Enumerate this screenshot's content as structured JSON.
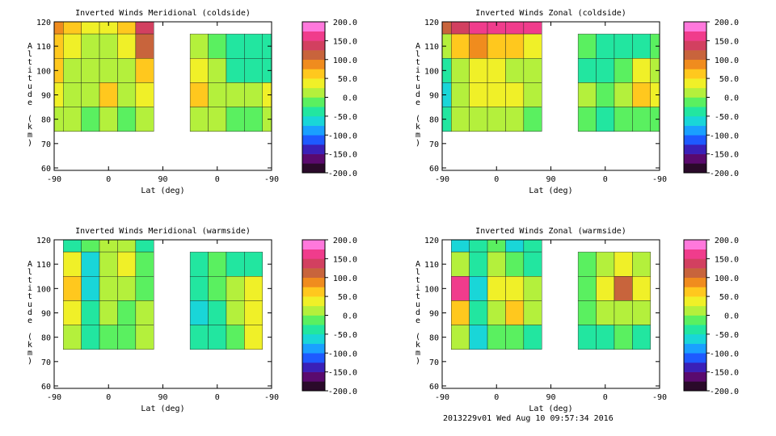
{
  "footer": "2013229v01 Wed Aug 10 09:57:34 2016",
  "colorbar": {
    "ticks": [
      "200.0",
      "150.0",
      "100.0",
      "50.0",
      "0.0",
      "-50.0",
      "-100.0",
      "-150.0",
      "-200.0"
    ],
    "range": [
      -200,
      200
    ],
    "colors": [
      "#2a0a2a",
      "#5a0a6e",
      "#3a20b8",
      "#1e5aff",
      "#1aa0ff",
      "#19d6d8",
      "#22e6a0",
      "#5af060",
      "#b4f03c",
      "#f0f028",
      "#ffc81e",
      "#f08c1e",
      "#c8643c",
      "#d24060",
      "#f03c8c",
      "#ff78dc"
    ]
  },
  "chart_data": [
    {
      "type": "heatmap",
      "title": "Inverted Winds Meridional (coldside)",
      "xlabel": "Lat (deg)",
      "ylabel": "Altitude (km)",
      "x_ticks": [
        "-90",
        "0",
        "90",
        "0",
        "-90"
      ],
      "y_ticks": [
        "60",
        "70",
        "80",
        "90",
        "100",
        "110",
        "120"
      ],
      "ylim": [
        59,
        120
      ],
      "x_domain": [
        -90,
        270
      ],
      "lat_grid": [
        -90,
        -60,
        -30,
        0,
        30,
        60,
        90,
        120,
        150,
        180,
        210,
        240,
        270
      ],
      "alt_grid": [
        120,
        110,
        100,
        90,
        80,
        70,
        60
      ],
      "values": [
        [
          90,
          60,
          30,
          40,
          70,
          140,
          null,
          null,
          null,
          null,
          null,
          null,
          null
        ],
        [
          70,
          40,
          10,
          20,
          30,
          120,
          null,
          null,
          20,
          -20,
          -40,
          -30,
          -50
        ],
        [
          50,
          20,
          0,
          10,
          20,
          60,
          null,
          null,
          40,
          0,
          -30,
          -40,
          -30
        ],
        [
          30,
          10,
          20,
          50,
          20,
          30,
          null,
          null,
          50,
          20,
          0,
          10,
          40
        ],
        [
          10,
          0,
          -10,
          0,
          -10,
          20,
          null,
          null,
          10,
          0,
          -20,
          -10,
          10
        ],
        [
          null,
          null,
          null,
          null,
          null,
          null,
          null,
          null,
          null,
          null,
          null,
          null,
          null
        ],
        [
          null,
          null,
          null,
          null,
          null,
          null,
          null,
          null,
          null,
          null,
          null,
          null,
          null
        ]
      ]
    },
    {
      "type": "heatmap",
      "title": "Inverted Winds Zonal (coldside)",
      "xlabel": "Lat (deg)",
      "ylabel": "Altitude (km)",
      "x_ticks": [
        "-90",
        "0",
        "90",
        "0",
        "-90"
      ],
      "y_ticks": [
        "60",
        "70",
        "80",
        "90",
        "100",
        "110",
        "120"
      ],
      "ylim": [
        59,
        120
      ],
      "x_domain": [
        -90,
        270
      ],
      "lat_grid": [
        -90,
        -60,
        -30,
        0,
        30,
        60,
        90,
        120,
        150,
        180,
        210,
        240,
        270
      ],
      "alt_grid": [
        120,
        110,
        100,
        90,
        80,
        70,
        60
      ],
      "values": [
        [
          120,
          140,
          150,
          160,
          170,
          150,
          null,
          null,
          null,
          null,
          null,
          null,
          null
        ],
        [
          20,
          60,
          80,
          60,
          70,
          30,
          null,
          null,
          -20,
          -40,
          -50,
          -30,
          -20
        ],
        [
          -40,
          10,
          30,
          40,
          20,
          10,
          null,
          null,
          -30,
          -40,
          -20,
          40,
          20
        ],
        [
          -60,
          20,
          40,
          30,
          40,
          0,
          null,
          null,
          10,
          -10,
          0,
          70,
          30
        ],
        [
          -30,
          0,
          10,
          20,
          0,
          -10,
          null,
          null,
          -10,
          -30,
          -20,
          -10,
          -20
        ],
        [
          null,
          null,
          null,
          null,
          null,
          null,
          null,
          null,
          null,
          null,
          null,
          null,
          null
        ],
        [
          null,
          null,
          null,
          null,
          null,
          null,
          null,
          null,
          null,
          null,
          null,
          null,
          null
        ]
      ]
    },
    {
      "type": "heatmap",
      "title": "Inverted Winds Meridional (warmside)",
      "xlabel": "Lat (deg)",
      "ylabel": "Altitude (km)",
      "x_ticks": [
        "-90",
        "0",
        "90",
        "0",
        "-90"
      ],
      "y_ticks": [
        "60",
        "70",
        "80",
        "90",
        "100",
        "110",
        "120"
      ],
      "ylim": [
        59,
        120
      ],
      "x_domain": [
        -90,
        270
      ],
      "lat_grid": [
        -90,
        -60,
        -30,
        0,
        30,
        60,
        90,
        120,
        150,
        180,
        210,
        240,
        270
      ],
      "alt_grid": [
        120,
        110,
        100,
        90,
        80,
        70,
        60
      ],
      "values": [
        [
          null,
          -40,
          -20,
          10,
          20,
          -30,
          null,
          null,
          null,
          null,
          null,
          null,
          null
        ],
        [
          null,
          40,
          -60,
          0,
          30,
          -20,
          null,
          null,
          -40,
          -10,
          -40,
          -50,
          null
        ],
        [
          null,
          60,
          -60,
          20,
          10,
          -20,
          null,
          null,
          -50,
          -20,
          10,
          30,
          null
        ],
        [
          null,
          30,
          -40,
          0,
          -10,
          10,
          null,
          null,
          -60,
          -40,
          10,
          40,
          null
        ],
        [
          null,
          20,
          -50,
          -20,
          -20,
          0,
          null,
          null,
          -40,
          -30,
          -10,
          30,
          null
        ],
        [
          null,
          null,
          null,
          null,
          null,
          null,
          null,
          null,
          null,
          null,
          null,
          null,
          null
        ],
        [
          null,
          null,
          null,
          null,
          null,
          null,
          null,
          null,
          null,
          null,
          null,
          null,
          null
        ]
      ]
    },
    {
      "type": "heatmap",
      "title": "Inverted Winds Zonal (warmside)",
      "xlabel": "Lat (deg)",
      "ylabel": "Altitude (km)",
      "x_ticks": [
        "-90",
        "0",
        "90",
        "0",
        "-90"
      ],
      "y_ticks": [
        "60",
        "70",
        "80",
        "90",
        "100",
        "110",
        "120"
      ],
      "ylim": [
        59,
        120
      ],
      "x_domain": [
        -90,
        270
      ],
      "lat_grid": [
        -90,
        -60,
        -30,
        0,
        30,
        60,
        90,
        120,
        150,
        180,
        210,
        240,
        270
      ],
      "alt_grid": [
        120,
        110,
        100,
        90,
        80,
        70,
        60
      ],
      "values": [
        [
          null,
          -60,
          -40,
          -20,
          -60,
          -40,
          null,
          null,
          null,
          null,
          null,
          null,
          null
        ],
        [
          null,
          20,
          -40,
          10,
          -20,
          -30,
          null,
          null,
          -20,
          0,
          40,
          10,
          null
        ],
        [
          null,
          160,
          -60,
          30,
          40,
          0,
          null,
          null,
          -10,
          30,
          100,
          40,
          null
        ],
        [
          null,
          50,
          -40,
          20,
          60,
          10,
          null,
          null,
          -20,
          10,
          20,
          0,
          null
        ],
        [
          null,
          0,
          -60,
          -10,
          -20,
          -30,
          null,
          null,
          -40,
          -30,
          -20,
          -30,
          null
        ],
        [
          null,
          null,
          null,
          null,
          null,
          null,
          null,
          null,
          null,
          null,
          null,
          null,
          null
        ],
        [
          null,
          null,
          null,
          null,
          null,
          null,
          null,
          null,
          null,
          null,
          null,
          null,
          null
        ]
      ]
    }
  ]
}
